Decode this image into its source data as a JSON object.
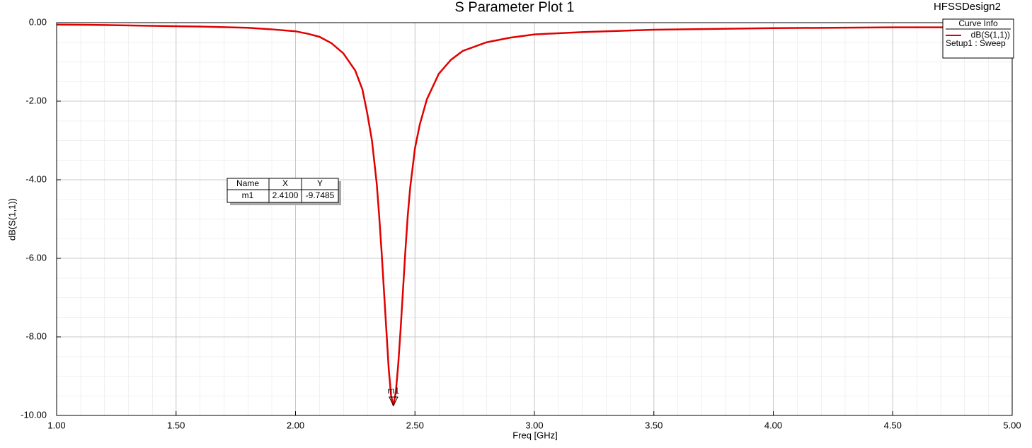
{
  "chart_data": {
    "type": "line",
    "title": "S Parameter Plot 1",
    "subtitle": "HFSSDesign2",
    "x_label": "Freq [GHz]",
    "y_label": "dB(S(1,1))",
    "x": [
      1.0,
      1.2,
      1.4,
      1.6,
      1.8,
      1.9,
      2.0,
      2.05,
      2.1,
      2.15,
      2.2,
      2.25,
      2.28,
      2.3,
      2.32,
      2.34,
      2.35,
      2.36,
      2.37,
      2.38,
      2.39,
      2.4,
      2.41,
      2.42,
      2.43,
      2.44,
      2.45,
      2.46,
      2.47,
      2.48,
      2.5,
      2.52,
      2.55,
      2.6,
      2.65,
      2.7,
      2.8,
      2.9,
      3.0,
      3.2,
      3.5,
      4.0,
      4.5,
      5.0
    ],
    "series": [
      {
        "name": "dB(S(1,1))",
        "legend_detail": "Setup1 : Sweep",
        "color": "#e00000",
        "values": [
          -0.05,
          -0.06,
          -0.08,
          -0.1,
          -0.13,
          -0.17,
          -0.22,
          -0.28,
          -0.36,
          -0.52,
          -0.78,
          -1.22,
          -1.7,
          -2.3,
          -3.0,
          -4.1,
          -4.9,
          -5.8,
          -6.8,
          -7.8,
          -8.8,
          -9.5,
          -9.7485,
          -9.4,
          -8.7,
          -7.8,
          -6.8,
          -5.8,
          -4.9,
          -4.2,
          -3.2,
          -2.6,
          -1.95,
          -1.3,
          -0.95,
          -0.72,
          -0.5,
          -0.38,
          -0.3,
          -0.24,
          -0.18,
          -0.14,
          -0.12,
          -0.12
        ]
      }
    ],
    "xlim": [
      1,
      5
    ],
    "ylim": [
      -10,
      0
    ],
    "xticks": [
      {
        "value": 1,
        "label": "1.00"
      },
      {
        "value": 1.5,
        "label": "1.50"
      },
      {
        "value": 2,
        "label": "2.00"
      },
      {
        "value": 2.5,
        "label": "2.50"
      },
      {
        "value": 3,
        "label": "3.00"
      },
      {
        "value": 3.5,
        "label": "3.50"
      },
      {
        "value": 4,
        "label": "4.00"
      },
      {
        "value": 4.5,
        "label": "4.50"
      },
      {
        "value": 5,
        "label": "5.00"
      }
    ],
    "yticks": [
      {
        "value": 0,
        "label": "0.00"
      },
      {
        "value": -2,
        "label": "-2.00"
      },
      {
        "value": -4,
        "label": "-4.00"
      },
      {
        "value": -6,
        "label": "-6.00"
      },
      {
        "value": -8,
        "label": "-8.00"
      },
      {
        "value": -10,
        "label": "-10.00"
      }
    ],
    "grid": true,
    "legend": "top-right",
    "legend_title": "Curve Info"
  },
  "marker_table": {
    "header": [
      "Name",
      "X",
      "Y"
    ],
    "rows": [
      [
        "m1",
        "2.4100",
        "-9.7485"
      ]
    ]
  }
}
